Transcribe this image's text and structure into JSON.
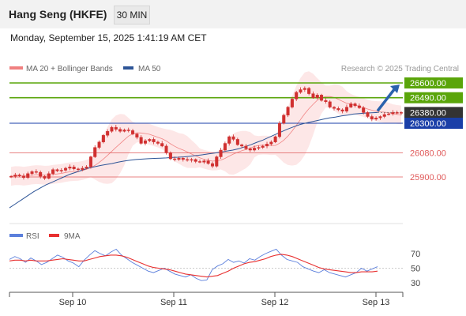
{
  "header": {
    "title": "Hang Seng (HKFE)",
    "timeframe": "30 MIN"
  },
  "datetime": "Monday, September 15, 2025 1:41:19 AM CET",
  "credit": "Research © 2025 Trading Central",
  "colors": {
    "resistance": "#5aa50a",
    "support": "#e05a5a",
    "pivot": "#1a3fa8",
    "ma50": "#2e5597",
    "bollinger": "#f07a7a",
    "bollinger_fill": "#fde3e3",
    "candle": "#d03030",
    "arrow": "#2a62ad",
    "rsi": "#5b7fdc",
    "rsi_ma": "#e83030",
    "last_price_bg": "#333333"
  },
  "chart_data": [
    {
      "type": "candlestick",
      "legend": [
        {
          "name": "MA 20 + Bollinger Bands",
          "color": "#f08080"
        },
        {
          "name": "MA 50",
          "color": "#2e5597"
        }
      ],
      "x_ticks": [
        "Sep 10",
        "Sep 11",
        "Sep 12",
        "Sep 13"
      ],
      "levels": [
        {
          "value": 26600,
          "label": "26600.00",
          "kind": "resistance"
        },
        {
          "value": 26490,
          "label": "26490.00",
          "kind": "resistance"
        },
        {
          "value": 26380,
          "label": "26380.00",
          "kind": "last"
        },
        {
          "value": 26300,
          "label": "26300.00",
          "kind": "pivot"
        },
        {
          "value": 26080,
          "label": "26080.00",
          "kind": "support"
        },
        {
          "value": 25900,
          "label": "25900.00",
          "kind": "support"
        }
      ],
      "candles_close": [
        25905,
        25915,
        25908,
        25895,
        25925,
        25940,
        25935,
        25905,
        25890,
        25925,
        25955,
        25945,
        25950,
        25965,
        25975,
        25960,
        25955,
        25965,
        25975,
        26050,
        26120,
        26160,
        26210,
        26240,
        26270,
        26255,
        26240,
        26250,
        26245,
        26220,
        26195,
        26150,
        26170,
        26180,
        26160,
        26150,
        26130,
        26080,
        26035,
        26030,
        26040,
        26030,
        26025,
        26030,
        26015,
        26010,
        26020,
        26000,
        25980,
        26050,
        26100,
        26150,
        26200,
        26180,
        26140,
        26130,
        26110,
        26100,
        26115,
        26120,
        26130,
        26145,
        26160,
        26200,
        26300,
        26360,
        26420,
        26480,
        26530,
        26550,
        26560,
        26520,
        26490,
        26510,
        26470,
        26460,
        26420,
        26410,
        26400,
        26390,
        26420,
        26445,
        26430,
        26415,
        26380,
        26350,
        26330,
        26340,
        26350,
        26365,
        26370,
        26380,
        26375,
        26380
      ],
      "ma50": [
        25670,
        25700,
        25730,
        25760,
        25790,
        25815,
        25840,
        25860,
        25880,
        25900,
        25920,
        25935,
        25950,
        25965,
        25975,
        25985,
        25993,
        26000,
        26010,
        26018,
        26025,
        26030,
        26033,
        26036,
        26038,
        26040,
        26042,
        26045,
        26047,
        26050,
        26055,
        26060,
        26065,
        26072,
        26078,
        26085,
        26093,
        26100,
        26110,
        26125,
        26140,
        26158,
        26175,
        26195,
        26215,
        26235,
        26255,
        26272,
        26288,
        26300,
        26310,
        26320,
        26330,
        26340,
        26345,
        26355,
        26360,
        26368,
        26372,
        26376,
        26378,
        26380
      ],
      "rsi": {
        "legend": [
          {
            "name": "RSI",
            "color": "#5b7fdc"
          },
          {
            "name": "9MA",
            "color": "#e83030"
          }
        ],
        "y_ticks": [
          70,
          50,
          30
        ],
        "ylim": [
          20,
          80
        ],
        "values": [
          62,
          66,
          63,
          58,
          64,
          60,
          55,
          58,
          63,
          68,
          65,
          60,
          57,
          52,
          61,
          68,
          74,
          70,
          67,
          72,
          76,
          68,
          63,
          58,
          54,
          50,
          46,
          44,
          47,
          50,
          46,
          42,
          40,
          38,
          41,
          36,
          33,
          34,
          48,
          53,
          56,
          62,
          58,
          60,
          57,
          63,
          61,
          66,
          70,
          73,
          76,
          68,
          62,
          60,
          58,
          52,
          49,
          46,
          44,
          48,
          44,
          42,
          40,
          38,
          41,
          44,
          50,
          46,
          49,
          52
        ],
        "ma": [
          60,
          61,
          61,
          60,
          61,
          60,
          60,
          60,
          61,
          62,
          63,
          62,
          61,
          60,
          60,
          62,
          64,
          66,
          67,
          68,
          68,
          67,
          65,
          62,
          59,
          56,
          53,
          51,
          50,
          49,
          48,
          46,
          44,
          42,
          41,
          40,
          39,
          38,
          39,
          40,
          43,
          46,
          50,
          53,
          56,
          58,
          59,
          61,
          63,
          66,
          68,
          69,
          68,
          66,
          63,
          60,
          57,
          54,
          51,
          49,
          48,
          47,
          46,
          45,
          44,
          44,
          45,
          45,
          45,
          46
        ]
      }
    }
  ]
}
